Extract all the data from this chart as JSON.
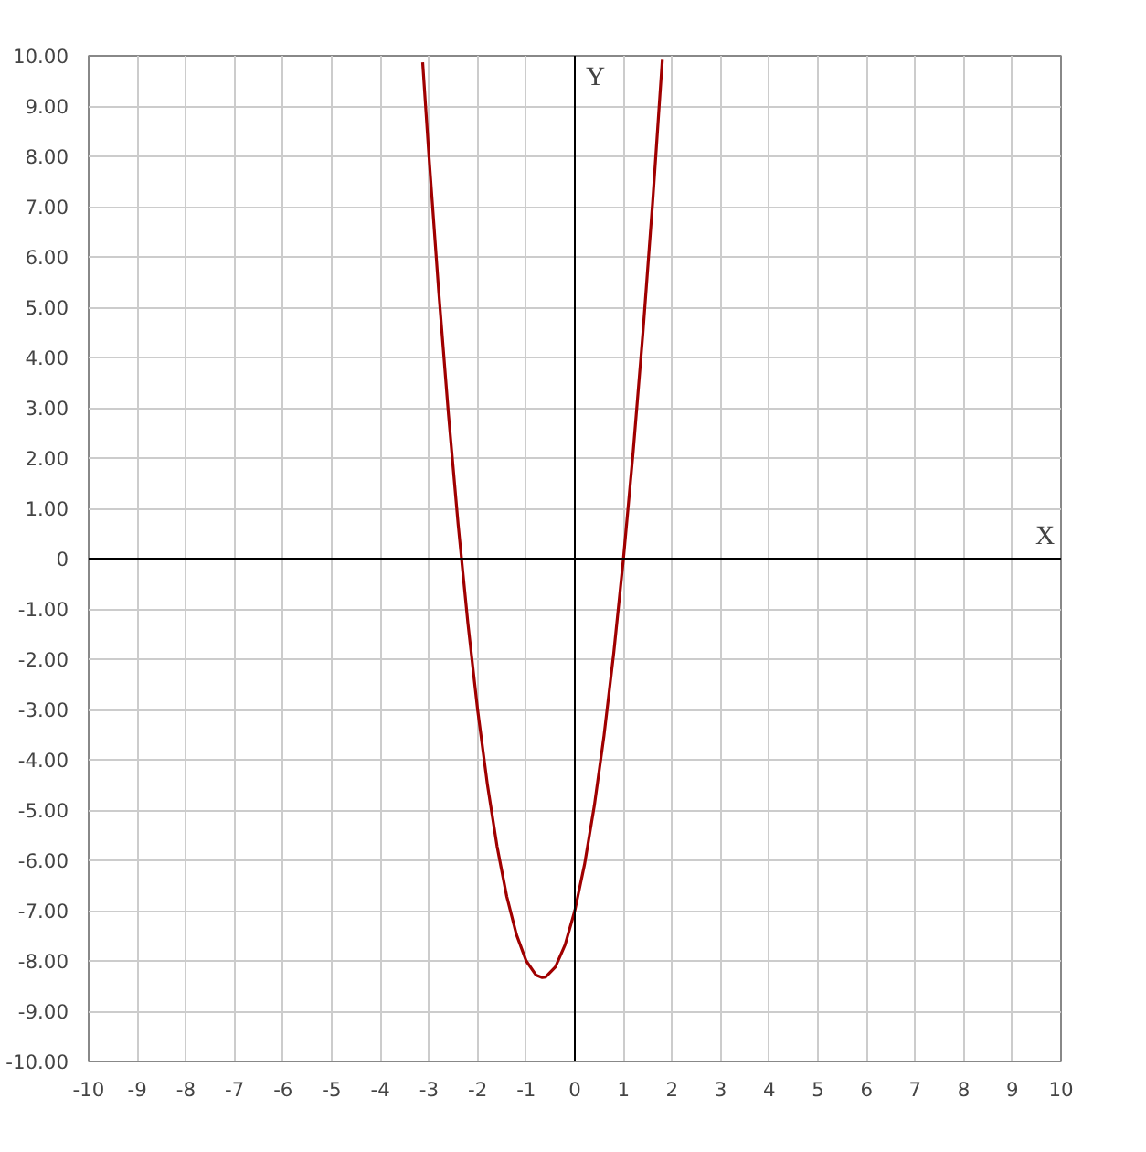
{
  "chart_data": {
    "type": "line",
    "xlabel": "X",
    "ylabel": "Y",
    "x": [
      -3.13,
      -3.0,
      -2.8,
      -2.6,
      -2.4,
      -2.2,
      -2.0,
      -1.8,
      -1.6,
      -1.4,
      -1.2,
      -1.0,
      -0.8,
      -0.67,
      -0.6,
      -0.4,
      -0.2,
      0,
      0.2,
      0.4,
      0.6,
      0.8,
      1.0,
      1.2,
      1.4,
      1.6,
      1.8
    ],
    "series": [
      {
        "color": "#a00000",
        "values": [
          9.87,
          8.0,
          5.32,
          2.88,
          0.68,
          -1.28,
          -3.0,
          -4.48,
          -5.72,
          -6.72,
          -7.48,
          -8.0,
          -8.28,
          -8.33,
          -8.32,
          -8.12,
          -7.68,
          -7.0,
          -6.08,
          -4.92,
          -3.52,
          -1.88,
          0.0,
          2.12,
          4.48,
          7.08,
          9.92
        ]
      }
    ],
    "xlim": [
      -10,
      10
    ],
    "ylim": [
      -10,
      10
    ],
    "xticks": [
      -10,
      -9,
      -8,
      -7,
      -6,
      -5,
      -4,
      -3,
      -2,
      -1,
      0,
      1,
      2,
      3,
      4,
      5,
      6,
      7,
      8,
      9,
      10
    ],
    "yticks": [
      {
        "value": -10,
        "label": "-10.00"
      },
      {
        "value": -9,
        "label": "-9.00"
      },
      {
        "value": -8,
        "label": "-8.00"
      },
      {
        "value": -7,
        "label": "-7.00"
      },
      {
        "value": -6,
        "label": "-6.00"
      },
      {
        "value": -5,
        "label": "-5.00"
      },
      {
        "value": -4,
        "label": "-4.00"
      },
      {
        "value": -3,
        "label": "-3.00"
      },
      {
        "value": -2,
        "label": "-2.00"
      },
      {
        "value": -1,
        "label": "-1.00"
      },
      0,
      {
        "value": 1,
        "label": "1.00"
      },
      {
        "value": 2,
        "label": "2.00"
      },
      {
        "value": 3,
        "label": "3.00"
      },
      {
        "value": 4,
        "label": "4.00"
      },
      {
        "value": 5,
        "label": "5.00"
      },
      {
        "value": 6,
        "label": "6.00"
      },
      {
        "value": 7,
        "label": "7.00"
      },
      {
        "value": 8,
        "label": "8.00"
      },
      {
        "value": 9,
        "label": "9.00"
      },
      {
        "value": 10,
        "label": "10.00"
      }
    ],
    "grid": true,
    "marker": "none",
    "line_style": "solid"
  }
}
